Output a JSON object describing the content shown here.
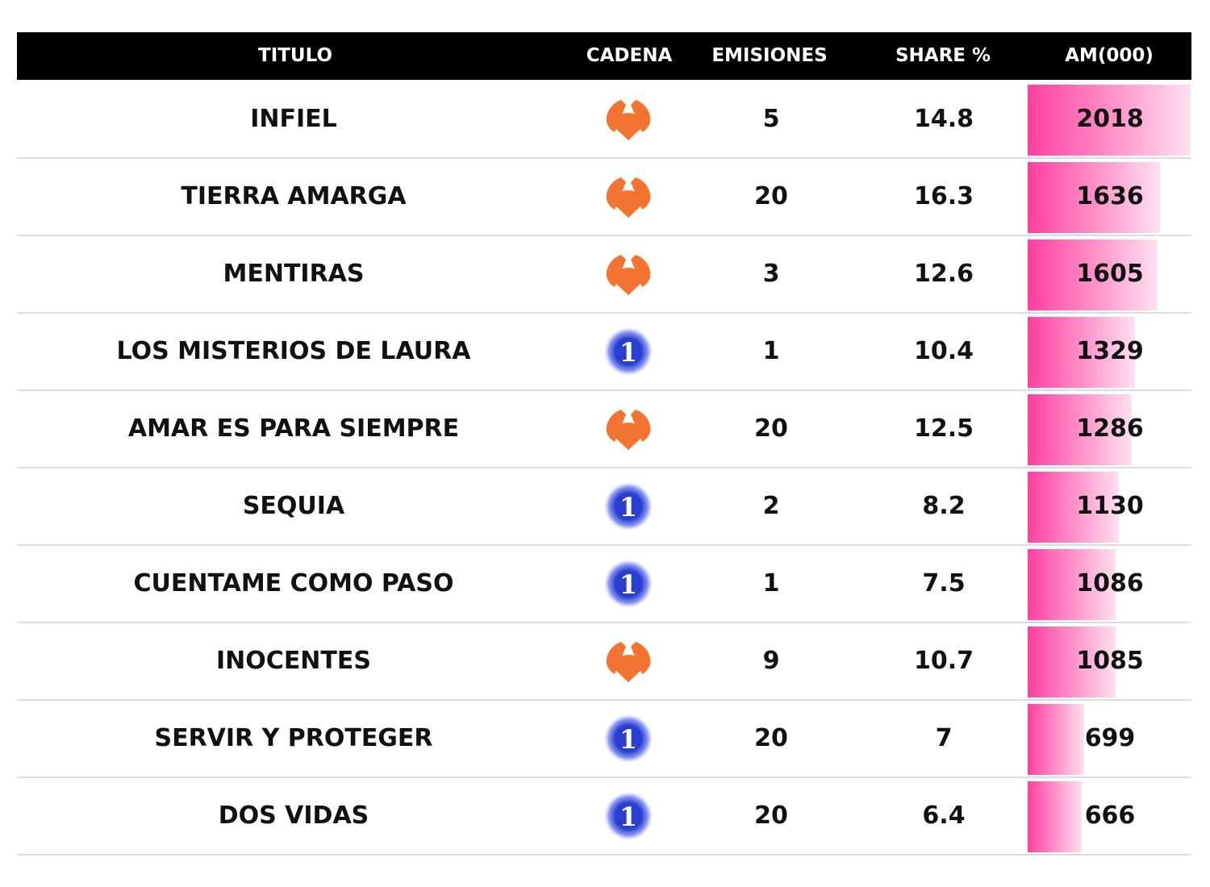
{
  "chart_data": {
    "type": "table",
    "columns": [
      "TITULO",
      "CADENA",
      "EMISIONES",
      "SHARE %",
      "AM(000)"
    ],
    "rows": [
      {
        "titulo": "INFIEL",
        "cadena": "antena3-logo",
        "emisiones": "5",
        "share": "14.8",
        "am": 2018
      },
      {
        "titulo": "TIERRA AMARGA",
        "cadena": "antena3-logo",
        "emisiones": "20",
        "share": "16.3",
        "am": 1636
      },
      {
        "titulo": "MENTIRAS",
        "cadena": "antena3-logo",
        "emisiones": "3",
        "share": "12.6",
        "am": 1605
      },
      {
        "titulo": "LOS MISTERIOS DE LAURA",
        "cadena": "la1-logo",
        "emisiones": "1",
        "share": "10.4",
        "am": 1329
      },
      {
        "titulo": "AMAR ES PARA SIEMPRE",
        "cadena": "antena3-logo",
        "emisiones": "20",
        "share": "12.5",
        "am": 1286
      },
      {
        "titulo": "SEQUIA",
        "cadena": "la1-logo",
        "emisiones": "2",
        "share": "8.2",
        "am": 1130
      },
      {
        "titulo": "CUENTAME COMO PASO",
        "cadena": "la1-logo",
        "emisiones": "1",
        "share": "7.5",
        "am": 1086
      },
      {
        "titulo": "INOCENTES",
        "cadena": "antena3-logo",
        "emisiones": "9",
        "share": "10.7",
        "am": 1085
      },
      {
        "titulo": "SERVIR Y PROTEGER",
        "cadena": "la1-logo",
        "emisiones": "20",
        "share": "7",
        "am": 699
      },
      {
        "titulo": "DOS VIDAS",
        "cadena": "la1-logo",
        "emisiones": "20",
        "share": "6.4",
        "am": 666
      }
    ],
    "bar_column": "AM(000)",
    "bar_max": 2018
  },
  "colors": {
    "header_bg": "#000000",
    "bar_start": "#ff3ea0",
    "bar_end": "#ffe0ef",
    "antena3": "#f57330",
    "la1": "#2a3fd0"
  }
}
